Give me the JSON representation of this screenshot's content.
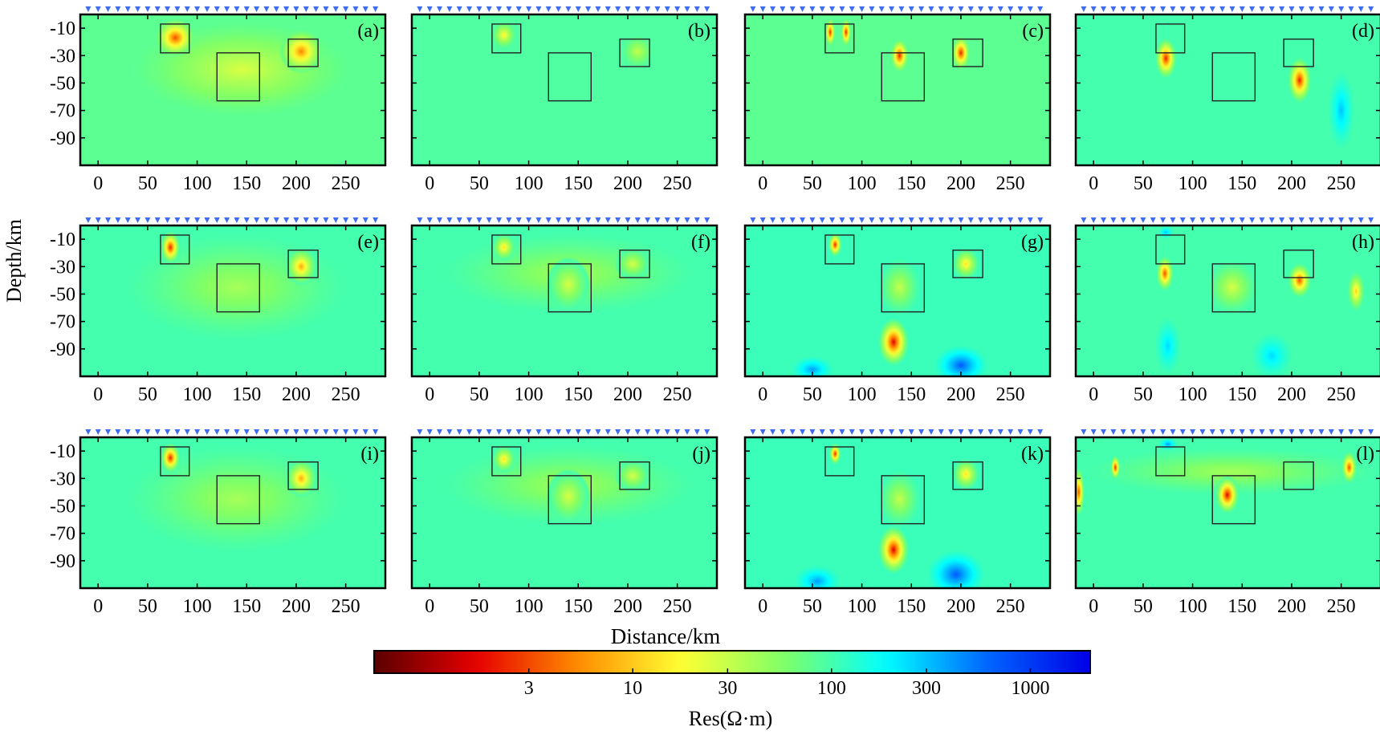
{
  "figure": {
    "ylabel": "Depth/km",
    "xlabel": "Distance/km",
    "colorbar_label": "Res(Ω·m)",
    "x_ticks": [
      "0",
      "50",
      "100",
      "150",
      "200",
      "250"
    ],
    "y_ticks": [
      "-10",
      "-30",
      "-50",
      "-70",
      "-90"
    ],
    "colorbar_ticks": [
      "3",
      "10",
      "30",
      "100",
      "300",
      "1000"
    ],
    "station_marker_color": "#3f6df0"
  },
  "chart_data": {
    "type": "heatmap",
    "scale": "log",
    "units": "Ω·m",
    "colorbar": {
      "range": [
        0.5,
        2000
      ],
      "ticks": [
        3,
        10,
        30,
        100,
        300,
        1000
      ],
      "colors": [
        "#5a0000",
        "#e60000",
        "#ff8c00",
        "#ffff33",
        "#80ff66",
        "#00ffff",
        "#0064ff",
        "#0000e6"
      ]
    },
    "x_range": [
      -18,
      290
    ],
    "y_range": [
      0,
      -110
    ],
    "panels": [
      {
        "label": "(a)",
        "background": 80,
        "blobs": [
          {
            "x": 78,
            "y": -17,
            "rx": 20,
            "ry": 14,
            "value": 3
          },
          {
            "x": 205,
            "y": -27,
            "rx": 22,
            "ry": 16,
            "value": 5
          },
          {
            "x": 145,
            "y": -40,
            "rx": 110,
            "ry": 35,
            "value": 25
          }
        ],
        "boxes": [
          [
            63,
            92,
            -7,
            -28
          ],
          [
            120,
            163,
            -28,
            -63
          ],
          [
            192,
            222,
            -18,
            -38
          ]
        ]
      },
      {
        "label": "(b)",
        "background": 90,
        "blobs": [
          {
            "x": 75,
            "y": -15,
            "rx": 12,
            "ry": 10,
            "value": 15
          },
          {
            "x": 210,
            "y": -27,
            "rx": 16,
            "ry": 12,
            "value": 30
          }
        ],
        "boxes": [
          [
            63,
            92,
            -7,
            -28
          ],
          [
            120,
            163,
            -28,
            -63
          ],
          [
            192,
            222,
            -18,
            -38
          ]
        ]
      },
      {
        "label": "(c)",
        "background": 80,
        "blobs": [
          {
            "x": 68,
            "y": -13,
            "rx": 5,
            "ry": 10,
            "value": 2
          },
          {
            "x": 84,
            "y": -13,
            "rx": 5,
            "ry": 10,
            "value": 2
          },
          {
            "x": 138,
            "y": -30,
            "rx": 9,
            "ry": 12,
            "value": 2
          },
          {
            "x": 200,
            "y": -28,
            "rx": 9,
            "ry": 12,
            "value": 2
          }
        ],
        "boxes": [
          [
            63,
            92,
            -7,
            -28
          ],
          [
            120,
            163,
            -28,
            -63
          ],
          [
            192,
            222,
            -18,
            -38
          ]
        ]
      },
      {
        "label": "(d)",
        "background": 100,
        "blobs": [
          {
            "x": 73,
            "y": -32,
            "rx": 11,
            "ry": 15,
            "value": 2
          },
          {
            "x": 208,
            "y": -48,
            "rx": 12,
            "ry": 17,
            "value": 2
          },
          {
            "x": 250,
            "y": -70,
            "rx": 14,
            "ry": 30,
            "value": 300
          }
        ],
        "boxes": [
          [
            63,
            92,
            -7,
            -28
          ],
          [
            120,
            163,
            -28,
            -63
          ],
          [
            192,
            222,
            -18,
            -38
          ]
        ]
      },
      {
        "label": "(e)",
        "background": 100,
        "blobs": [
          {
            "x": 73,
            "y": -16,
            "rx": 10,
            "ry": 12,
            "value": 2
          },
          {
            "x": 205,
            "y": -30,
            "rx": 16,
            "ry": 14,
            "value": 7
          },
          {
            "x": 140,
            "y": -45,
            "rx": 115,
            "ry": 40,
            "value": 40
          }
        ],
        "boxes": [
          [
            63,
            92,
            -7,
            -28
          ],
          [
            120,
            163,
            -28,
            -63
          ],
          [
            192,
            222,
            -18,
            -38
          ]
        ]
      },
      {
        "label": "(f)",
        "background": 100,
        "blobs": [
          {
            "x": 75,
            "y": -16,
            "rx": 12,
            "ry": 10,
            "value": 12
          },
          {
            "x": 140,
            "y": -43,
            "rx": 22,
            "ry": 20,
            "value": 25
          },
          {
            "x": 205,
            "y": -28,
            "rx": 18,
            "ry": 12,
            "value": 25
          },
          {
            "x": 140,
            "y": -35,
            "rx": 130,
            "ry": 30,
            "value": 40
          }
        ],
        "boxes": [
          [
            63,
            92,
            -7,
            -28
          ],
          [
            120,
            163,
            -28,
            -63
          ],
          [
            192,
            222,
            -18,
            -38
          ]
        ]
      },
      {
        "label": "(g)",
        "background": 110,
        "blobs": [
          {
            "x": 73,
            "y": -14,
            "rx": 7,
            "ry": 9,
            "value": 2
          },
          {
            "x": 205,
            "y": -28,
            "rx": 14,
            "ry": 12,
            "value": 12
          },
          {
            "x": 138,
            "y": -45,
            "rx": 22,
            "ry": 22,
            "value": 30
          },
          {
            "x": 132,
            "y": -85,
            "rx": 16,
            "ry": 18,
            "value": 1.5
          },
          {
            "x": 50,
            "y": -105,
            "rx": 22,
            "ry": 10,
            "value": 400
          },
          {
            "x": 200,
            "y": -102,
            "rx": 28,
            "ry": 15,
            "value": 700
          }
        ],
        "boxes": [
          [
            63,
            92,
            -7,
            -28
          ],
          [
            120,
            163,
            -28,
            -63
          ],
          [
            192,
            222,
            -18,
            -38
          ]
        ]
      },
      {
        "label": "(h)",
        "background": 100,
        "blobs": [
          {
            "x": 72,
            "y": -35,
            "rx": 9,
            "ry": 13,
            "value": 3
          },
          {
            "x": 208,
            "y": -40,
            "rx": 12,
            "ry": 13,
            "value": 3
          },
          {
            "x": 140,
            "y": -45,
            "rx": 25,
            "ry": 20,
            "value": 25
          },
          {
            "x": 265,
            "y": -48,
            "rx": 9,
            "ry": 15,
            "value": 10
          },
          {
            "x": 75,
            "y": -88,
            "rx": 14,
            "ry": 22,
            "value": 250
          },
          {
            "x": 180,
            "y": -95,
            "rx": 22,
            "ry": 18,
            "value": 250
          },
          {
            "x": 73,
            "y": -5,
            "rx": 8,
            "ry": 5,
            "value": 300
          }
        ],
        "boxes": [
          [
            63,
            92,
            -7,
            -28
          ],
          [
            120,
            163,
            -28,
            -63
          ],
          [
            192,
            222,
            -18,
            -38
          ]
        ]
      },
      {
        "label": "(i)",
        "background": 100,
        "blobs": [
          {
            "x": 73,
            "y": -15,
            "rx": 10,
            "ry": 11,
            "value": 2
          },
          {
            "x": 205,
            "y": -30,
            "rx": 16,
            "ry": 14,
            "value": 7
          },
          {
            "x": 140,
            "y": -45,
            "rx": 115,
            "ry": 40,
            "value": 40
          }
        ],
        "boxes": [
          [
            63,
            92,
            -7,
            -28
          ],
          [
            120,
            163,
            -28,
            -63
          ],
          [
            192,
            222,
            -18,
            -38
          ]
        ]
      },
      {
        "label": "(j)",
        "background": 100,
        "blobs": [
          {
            "x": 75,
            "y": -16,
            "rx": 12,
            "ry": 10,
            "value": 12
          },
          {
            "x": 140,
            "y": -43,
            "rx": 22,
            "ry": 20,
            "value": 25
          },
          {
            "x": 205,
            "y": -28,
            "rx": 18,
            "ry": 12,
            "value": 25
          },
          {
            "x": 140,
            "y": -35,
            "rx": 130,
            "ry": 30,
            "value": 40
          }
        ],
        "boxes": [
          [
            63,
            92,
            -7,
            -28
          ],
          [
            120,
            163,
            -28,
            -63
          ],
          [
            192,
            222,
            -18,
            -38
          ]
        ]
      },
      {
        "label": "(k)",
        "background": 110,
        "blobs": [
          {
            "x": 73,
            "y": -12,
            "rx": 6,
            "ry": 8,
            "value": 2
          },
          {
            "x": 205,
            "y": -27,
            "rx": 14,
            "ry": 12,
            "value": 12
          },
          {
            "x": 138,
            "y": -45,
            "rx": 22,
            "ry": 22,
            "value": 30
          },
          {
            "x": 132,
            "y": -82,
            "rx": 16,
            "ry": 18,
            "value": 1.5
          },
          {
            "x": 55,
            "y": -105,
            "rx": 24,
            "ry": 12,
            "value": 400
          },
          {
            "x": 195,
            "y": -100,
            "rx": 30,
            "ry": 18,
            "value": 700
          }
        ],
        "boxes": [
          [
            63,
            92,
            -7,
            -28
          ],
          [
            120,
            163,
            -28,
            -63
          ],
          [
            192,
            222,
            -18,
            -38
          ]
        ]
      },
      {
        "label": "(l)",
        "background": 100,
        "blobs": [
          {
            "x": -15,
            "y": -40,
            "rx": 6,
            "ry": 18,
            "value": 3
          },
          {
            "x": 22,
            "y": -22,
            "rx": 5,
            "ry": 9,
            "value": 2
          },
          {
            "x": 135,
            "y": -42,
            "rx": 12,
            "ry": 14,
            "value": 1.5
          },
          {
            "x": 258,
            "y": -22,
            "rx": 8,
            "ry": 12,
            "value": 3
          },
          {
            "x": 140,
            "y": -25,
            "rx": 150,
            "ry": 18,
            "value": 40
          },
          {
            "x": 75,
            "y": -5,
            "rx": 10,
            "ry": 5,
            "value": 400
          }
        ],
        "boxes": [
          [
            63,
            92,
            -7,
            -28
          ],
          [
            120,
            163,
            -28,
            -63
          ],
          [
            192,
            222,
            -18,
            -38
          ]
        ]
      }
    ]
  }
}
